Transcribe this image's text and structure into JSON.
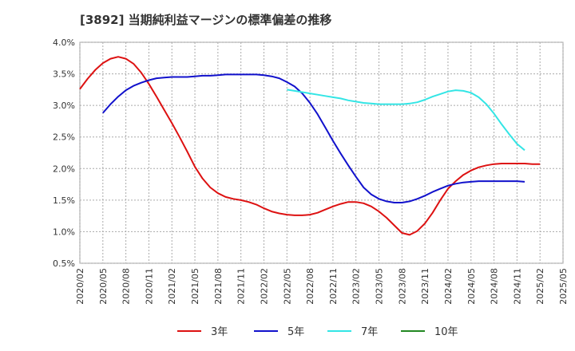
{
  "chart_data": {
    "type": "line",
    "title": "[3892]  当期純利益マージンの標準偏差の推移",
    "xlabel": "",
    "ylabel": "",
    "ylim": [
      0.5,
      4.0
    ],
    "y_ticks": [
      "4.0%",
      "3.5%",
      "3.0%",
      "2.5%",
      "2.0%",
      "1.5%",
      "1.0%",
      "0.5%"
    ],
    "y_tick_values": [
      4.0,
      3.5,
      3.0,
      2.5,
      2.0,
      1.5,
      1.0,
      0.5
    ],
    "x_ticks": [
      "2020/02",
      "2020/05",
      "2020/08",
      "2020/11",
      "2021/02",
      "2021/05",
      "2021/08",
      "2021/11",
      "2022/02",
      "2022/05",
      "2022/08",
      "2022/11",
      "2023/02",
      "2023/05",
      "2023/08",
      "2023/11",
      "2024/02",
      "2024/05",
      "2024/08",
      "2024/11",
      "2025/02",
      "2025/05"
    ],
    "grid": true,
    "legend_position": "bottom",
    "series": [
      {
        "name": "3年",
        "color": "#dd1111",
        "points": [
          [
            "2020/02",
            3.26
          ],
          [
            "2020/03",
            3.42
          ],
          [
            "2020/04",
            3.56
          ],
          [
            "2020/05",
            3.67
          ],
          [
            "2020/06",
            3.74
          ],
          [
            "2020/07",
            3.77
          ],
          [
            "2020/08",
            3.74
          ],
          [
            "2020/09",
            3.66
          ],
          [
            "2020/10",
            3.52
          ],
          [
            "2020/11",
            3.34
          ],
          [
            "2020/12",
            3.14
          ],
          [
            "2021/01",
            2.93
          ],
          [
            "2021/02",
            2.72
          ],
          [
            "2021/03",
            2.5
          ],
          [
            "2021/04",
            2.27
          ],
          [
            "2021/05",
            2.03
          ],
          [
            "2021/06",
            1.84
          ],
          [
            "2021/07",
            1.7
          ],
          [
            "2021/08",
            1.61
          ],
          [
            "2021/09",
            1.55
          ],
          [
            "2021/10",
            1.52
          ],
          [
            "2021/11",
            1.5
          ],
          [
            "2021/12",
            1.47
          ],
          [
            "2022/01",
            1.43
          ],
          [
            "2022/02",
            1.37
          ],
          [
            "2022/03",
            1.32
          ],
          [
            "2022/04",
            1.29
          ],
          [
            "2022/05",
            1.27
          ],
          [
            "2022/06",
            1.26
          ],
          [
            "2022/07",
            1.26
          ],
          [
            "2022/08",
            1.27
          ],
          [
            "2022/09",
            1.3
          ],
          [
            "2022/10",
            1.35
          ],
          [
            "2022/11",
            1.4
          ],
          [
            "2022/12",
            1.44
          ],
          [
            "2023/01",
            1.47
          ],
          [
            "2023/02",
            1.47
          ],
          [
            "2023/03",
            1.45
          ],
          [
            "2023/04",
            1.4
          ],
          [
            "2023/05",
            1.32
          ],
          [
            "2023/06",
            1.22
          ],
          [
            "2023/07",
            1.1
          ],
          [
            "2023/08",
            0.98
          ],
          [
            "2023/09",
            0.95
          ],
          [
            "2023/10",
            1.01
          ],
          [
            "2023/11",
            1.13
          ],
          [
            "2023/12",
            1.3
          ],
          [
            "2024/01",
            1.5
          ],
          [
            "2024/02",
            1.68
          ],
          [
            "2024/03",
            1.8
          ],
          [
            "2024/04",
            1.9
          ],
          [
            "2024/05",
            1.97
          ],
          [
            "2024/06",
            2.02
          ],
          [
            "2024/07",
            2.05
          ],
          [
            "2024/08",
            2.07
          ],
          [
            "2024/09",
            2.08
          ],
          [
            "2024/10",
            2.08
          ],
          [
            "2024/11",
            2.08
          ],
          [
            "2024/12",
            2.08
          ],
          [
            "2025/01",
            2.07
          ],
          [
            "2025/02",
            2.07
          ]
        ]
      },
      {
        "name": "5年",
        "color": "#1111cc",
        "points": [
          [
            "2020/05",
            2.88
          ],
          [
            "2020/06",
            3.02
          ],
          [
            "2020/07",
            3.14
          ],
          [
            "2020/08",
            3.24
          ],
          [
            "2020/09",
            3.31
          ],
          [
            "2020/10",
            3.36
          ],
          [
            "2020/11",
            3.4
          ],
          [
            "2020/12",
            3.43
          ],
          [
            "2021/01",
            3.44
          ],
          [
            "2021/02",
            3.45
          ],
          [
            "2021/03",
            3.45
          ],
          [
            "2021/04",
            3.45
          ],
          [
            "2021/05",
            3.46
          ],
          [
            "2021/06",
            3.47
          ],
          [
            "2021/07",
            3.47
          ],
          [
            "2021/08",
            3.48
          ],
          [
            "2021/09",
            3.49
          ],
          [
            "2021/10",
            3.49
          ],
          [
            "2021/11",
            3.49
          ],
          [
            "2021/12",
            3.49
          ],
          [
            "2022/01",
            3.49
          ],
          [
            "2022/02",
            3.48
          ],
          [
            "2022/03",
            3.46
          ],
          [
            "2022/04",
            3.43
          ],
          [
            "2022/05",
            3.37
          ],
          [
            "2022/06",
            3.3
          ],
          [
            "2022/07",
            3.19
          ],
          [
            "2022/08",
            3.04
          ],
          [
            "2022/09",
            2.86
          ],
          [
            "2022/10",
            2.65
          ],
          [
            "2022/11",
            2.44
          ],
          [
            "2022/12",
            2.24
          ],
          [
            "2023/01",
            2.05
          ],
          [
            "2023/02",
            1.87
          ],
          [
            "2023/03",
            1.7
          ],
          [
            "2023/04",
            1.59
          ],
          [
            "2023/05",
            1.52
          ],
          [
            "2023/06",
            1.48
          ],
          [
            "2023/07",
            1.46
          ],
          [
            "2023/08",
            1.46
          ],
          [
            "2023/09",
            1.48
          ],
          [
            "2023/10",
            1.52
          ],
          [
            "2023/11",
            1.57
          ],
          [
            "2023/12",
            1.63
          ],
          [
            "2024/01",
            1.68
          ],
          [
            "2024/02",
            1.73
          ],
          [
            "2024/03",
            1.76
          ],
          [
            "2024/04",
            1.78
          ],
          [
            "2024/05",
            1.79
          ],
          [
            "2024/06",
            1.8
          ],
          [
            "2024/07",
            1.8
          ],
          [
            "2024/08",
            1.8
          ],
          [
            "2024/09",
            1.8
          ],
          [
            "2024/10",
            1.8
          ],
          [
            "2024/11",
            1.8
          ],
          [
            "2024/12",
            1.79
          ]
        ]
      },
      {
        "name": "7年",
        "color": "#33e5e5",
        "points": [
          [
            "2022/05",
            3.25
          ],
          [
            "2022/06",
            3.23
          ],
          [
            "2022/07",
            3.21
          ],
          [
            "2022/08",
            3.19
          ],
          [
            "2022/09",
            3.17
          ],
          [
            "2022/10",
            3.15
          ],
          [
            "2022/11",
            3.13
          ],
          [
            "2022/12",
            3.11
          ],
          [
            "2023/01",
            3.08
          ],
          [
            "2023/02",
            3.06
          ],
          [
            "2023/03",
            3.04
          ],
          [
            "2023/04",
            3.03
          ],
          [
            "2023/05",
            3.02
          ],
          [
            "2023/06",
            3.02
          ],
          [
            "2023/07",
            3.02
          ],
          [
            "2023/08",
            3.02
          ],
          [
            "2023/09",
            3.03
          ],
          [
            "2023/10",
            3.05
          ],
          [
            "2023/11",
            3.09
          ],
          [
            "2023/12",
            3.14
          ],
          [
            "2024/01",
            3.18
          ],
          [
            "2024/02",
            3.22
          ],
          [
            "2024/03",
            3.24
          ],
          [
            "2024/04",
            3.23
          ],
          [
            "2024/05",
            3.2
          ],
          [
            "2024/06",
            3.13
          ],
          [
            "2024/07",
            3.02
          ],
          [
            "2024/08",
            2.87
          ],
          [
            "2024/09",
            2.7
          ],
          [
            "2024/10",
            2.54
          ],
          [
            "2024/11",
            2.39
          ],
          [
            "2024/12",
            2.29
          ]
        ]
      },
      {
        "name": "10年",
        "color": "#228822",
        "points": []
      }
    ]
  }
}
